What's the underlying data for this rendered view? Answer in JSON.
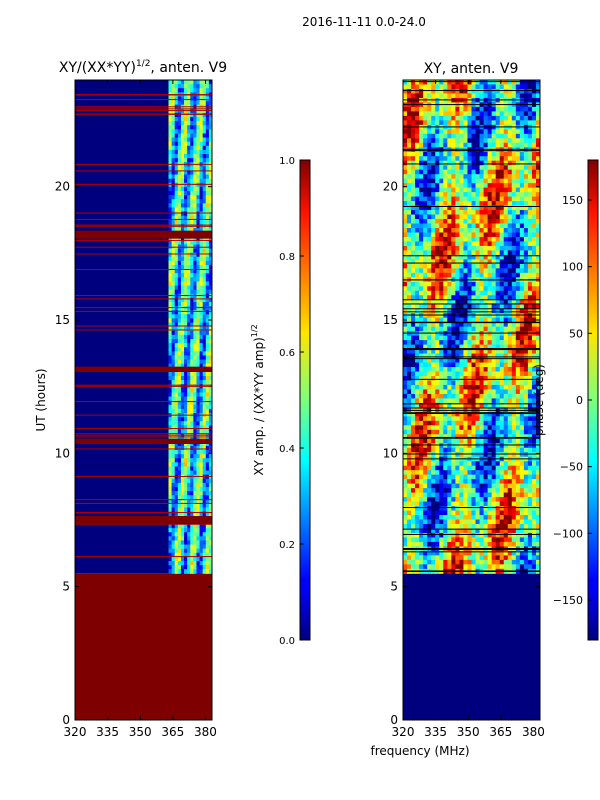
{
  "figure": {
    "suptitle": "2016-11-11 0.0-24.0",
    "xlabel": "frequency (MHz)"
  },
  "chart_data": [
    {
      "type": "heatmap",
      "title": "XY/(XX*YY)",
      "title_exponent": "1/2",
      "title_suffix": ", anten. V9",
      "ylabel": "UT (hours)",
      "xlim": [
        320,
        383
      ],
      "ylim": [
        0,
        24
      ],
      "xticks": [
        320,
        335,
        350,
        365,
        380
      ],
      "yticks": [
        0,
        5,
        10,
        15,
        20
      ],
      "no_data_below_hour": 5.5,
      "red_flag_bands_hours": [
        [
          18.05,
          18.35
        ],
        [
          13.05,
          13.25
        ],
        [
          10.35,
          10.55
        ],
        [
          7.35,
          7.65
        ]
      ],
      "colorbar": {
        "label": "XY amp. / (XX*YY amp)",
        "label_exponent": "1/2",
        "range": [
          0.0,
          1.0
        ],
        "ticks": [
          "0.0",
          "0.2",
          "0.4",
          "0.6",
          "0.8",
          "1.0"
        ],
        "colormap": "jet"
      }
    },
    {
      "type": "heatmap",
      "title": "XY, anten. V9",
      "ylabel": "",
      "xlim": [
        320,
        383
      ],
      "ylim": [
        0,
        24
      ],
      "xticks": [
        320,
        335,
        350,
        365,
        380
      ],
      "yticks": [
        0,
        5,
        10,
        15,
        20
      ],
      "no_data_below_hour": 5.5,
      "colorbar": {
        "label": "phase (deg)",
        "range": [
          -180,
          180
        ],
        "ticks": [
          "150",
          "100",
          "50",
          "0",
          "−50",
          "−100",
          "−150"
        ],
        "tick_values": [
          150,
          100,
          50,
          0,
          -50,
          -100,
          -150
        ],
        "colormap": "jet"
      }
    }
  ]
}
